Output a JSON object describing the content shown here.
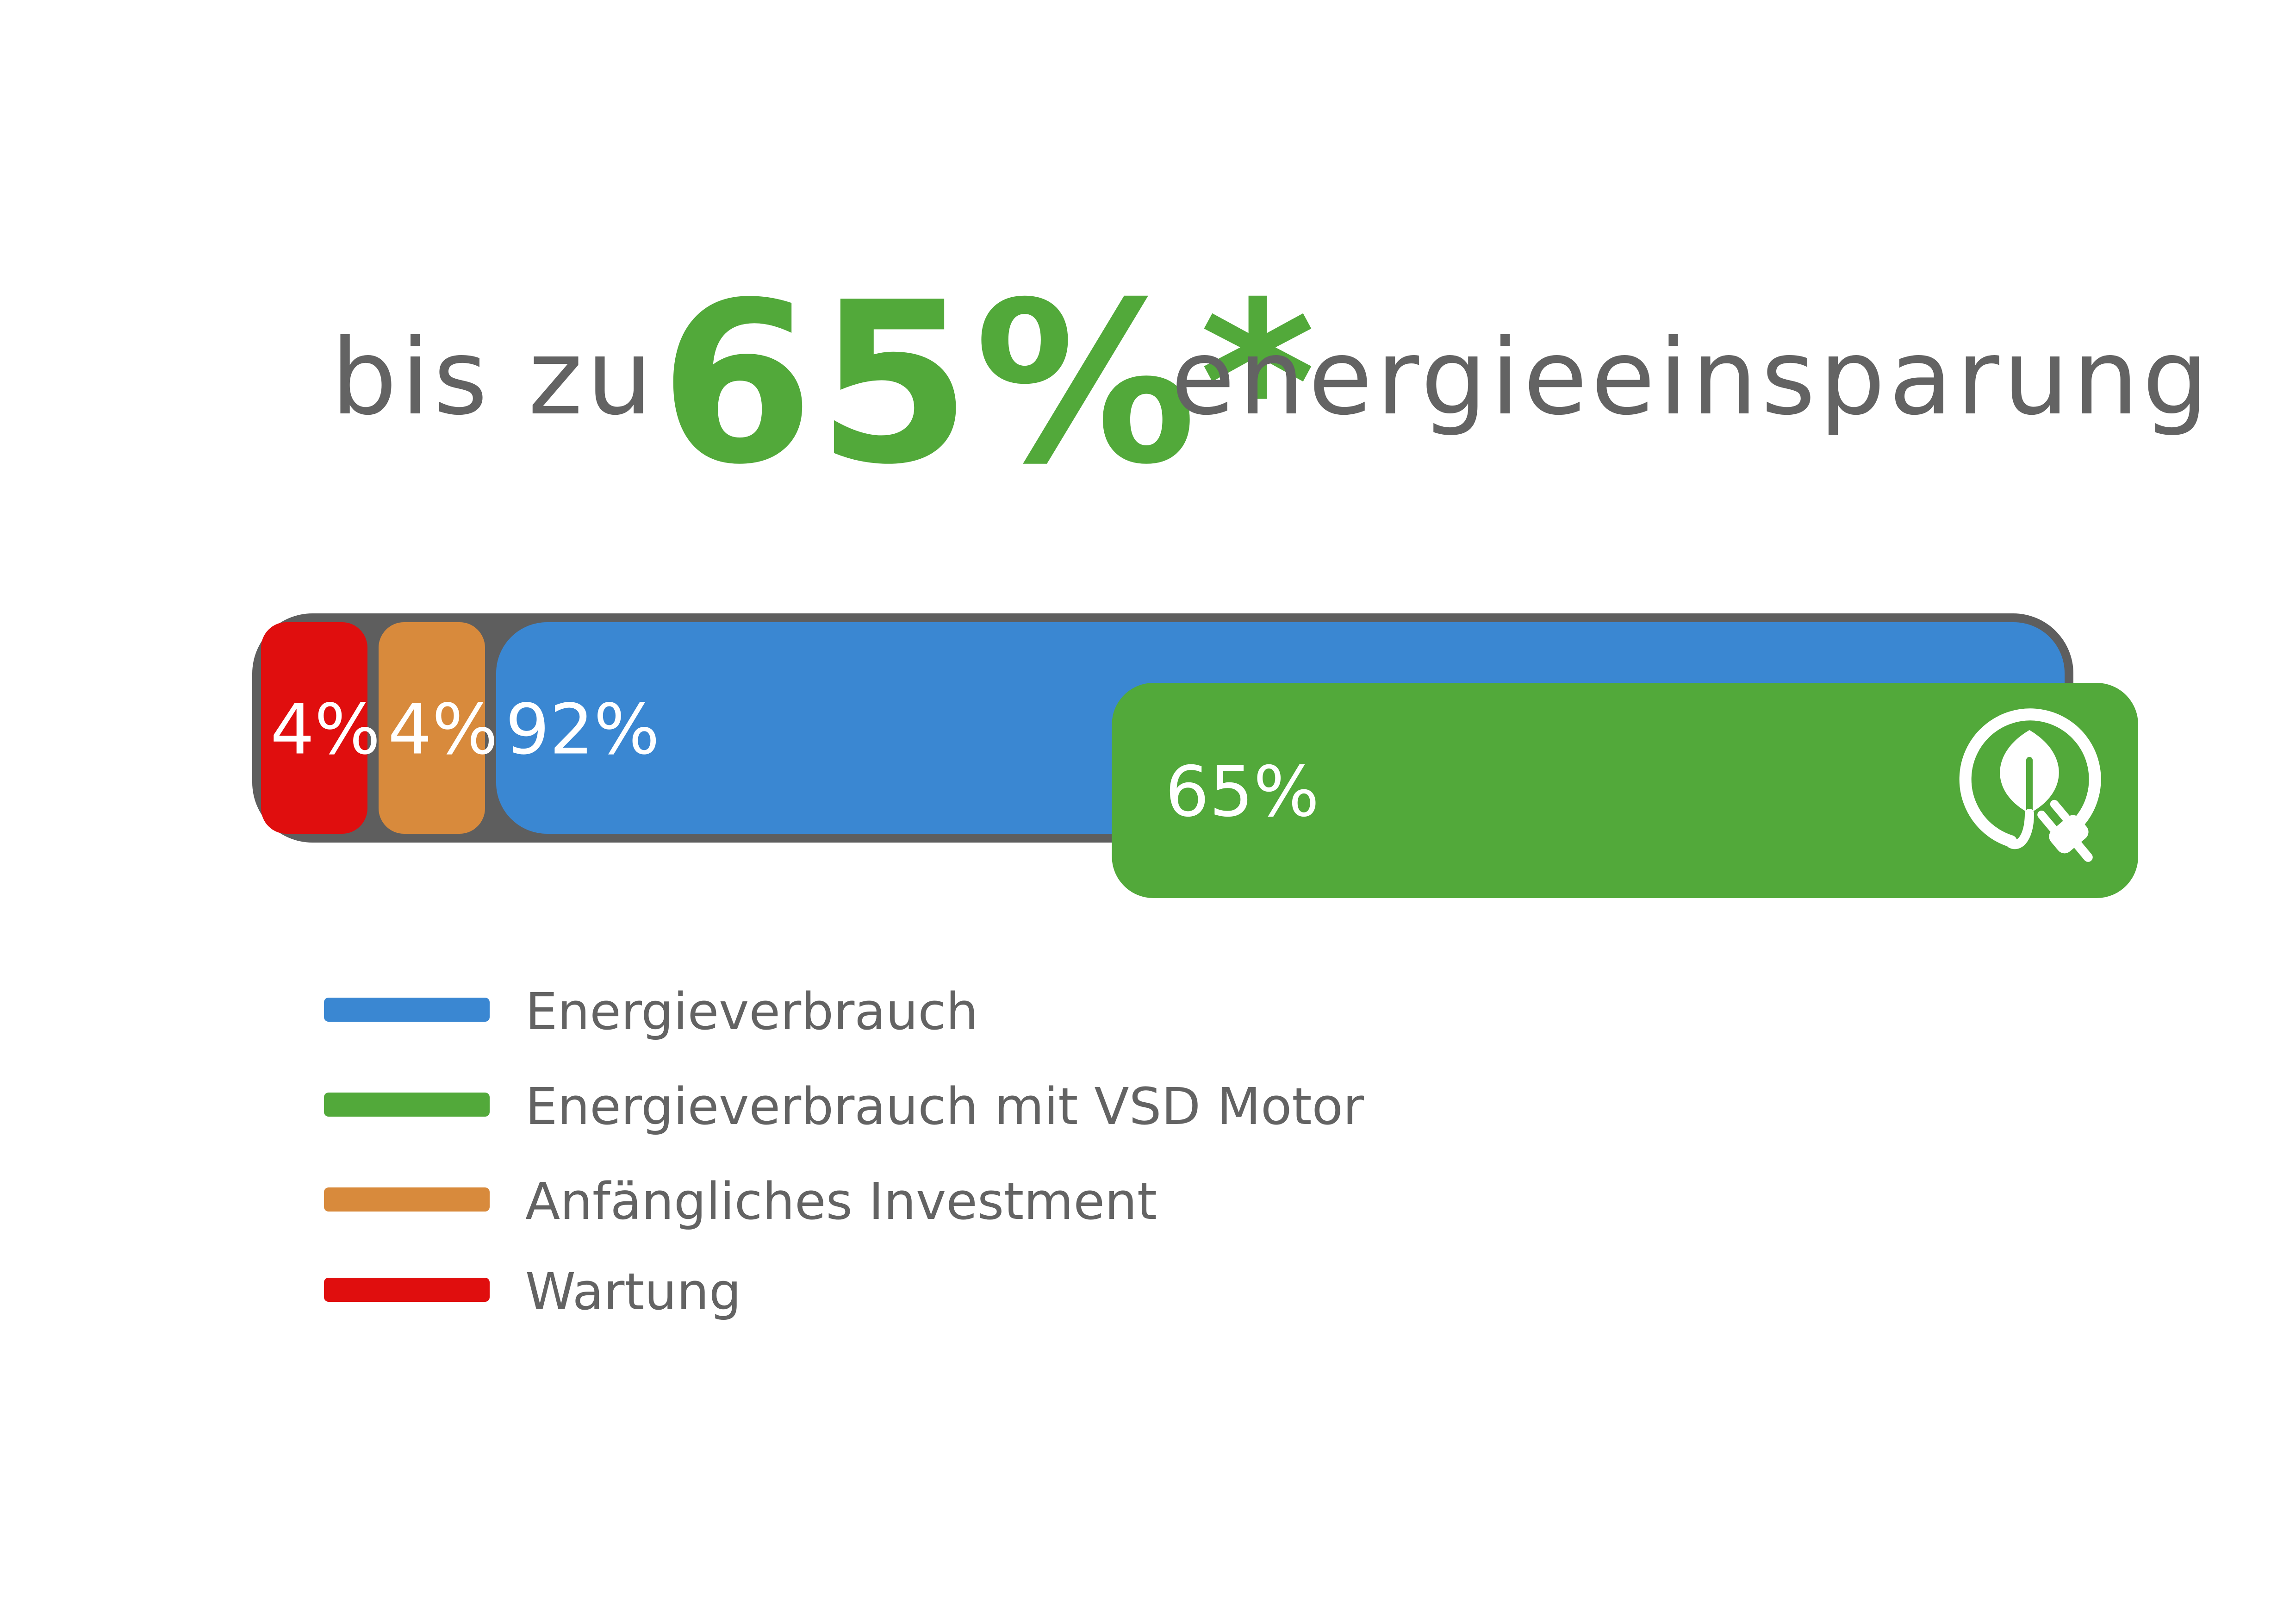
{
  "headline": {
    "prefix": "bis zu",
    "highlight": "65%*",
    "suffix": "energieeinsparung"
  },
  "colors": {
    "text_gray": "#636363",
    "green": "#52a93a",
    "blue": "#3a87d2",
    "orange": "#d88a3c",
    "red": "#e00e0e",
    "frame": "#5e5e5e"
  },
  "chart_data": {
    "type": "bar",
    "orientation": "horizontal-stacked",
    "title": "",
    "series": [
      {
        "name": "Wartung",
        "value": 4,
        "label": "4%",
        "color": "#e00e0e"
      },
      {
        "name": "Anfängliches Investment",
        "value": 4,
        "label": "4%",
        "color": "#d88a3c"
      },
      {
        "name": "Energieverbrauch",
        "value": 92,
        "label": "92%",
        "color": "#3a87d2"
      },
      {
        "name": "Energieverbrauch mit VSD Motor",
        "value": 65,
        "label": "65%",
        "color": "#52a93a"
      }
    ],
    "legend_position": "bottom-left"
  },
  "icons": {
    "eco_plug": "leaf-plug-icon"
  },
  "legend": [
    {
      "label": "Energieverbrauch",
      "color": "#3a87d2"
    },
    {
      "label": "Energieverbrauch mit VSD Motor",
      "color": "#52a93a"
    },
    {
      "label": "Anfängliches Investment",
      "color": "#d88a3c"
    },
    {
      "label": "Wartung",
      "color": "#e00e0e"
    }
  ]
}
